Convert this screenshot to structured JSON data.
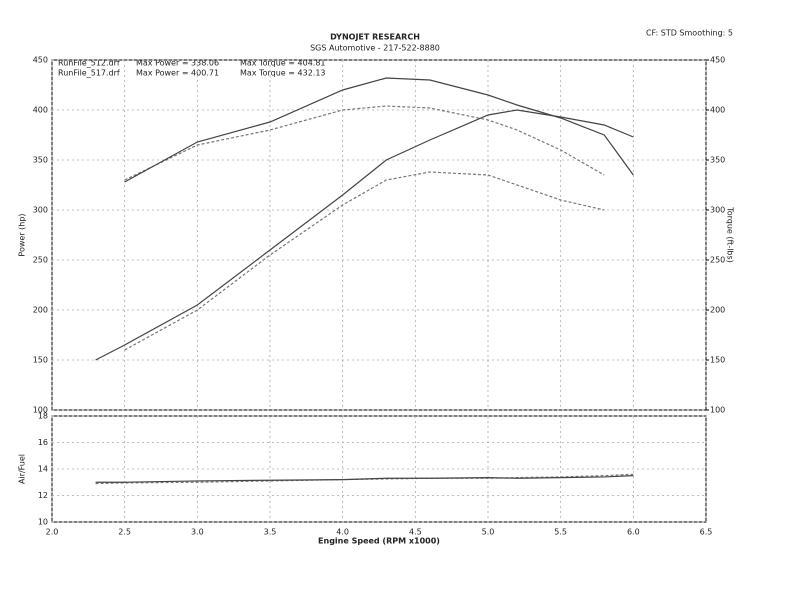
{
  "header": {
    "title": "DYNOJET RESEARCH",
    "subtitle": "SGS Automotive - 217-522-8880",
    "settings": "CF: STD  Smoothing: 5"
  },
  "chart_data": [
    {
      "type": "line",
      "ylabel": "Power (hp)",
      "y2label": "Torque (ft-lbs)",
      "x": [
        2.3,
        2.5,
        3.0,
        3.5,
        4.0,
        4.3,
        4.6,
        5.0,
        5.2,
        5.5,
        5.8,
        6.0
      ],
      "xlim": [
        2,
        6.5
      ],
      "xticks": [
        2,
        2.5,
        3,
        3.5,
        4,
        4.5,
        5,
        5.5,
        6,
        6.5
      ],
      "ylim": [
        100,
        450
      ],
      "yticks": [
        100,
        150,
        200,
        250,
        300,
        350,
        400,
        450
      ],
      "y2lim": [
        100,
        450
      ],
      "y2ticks": [
        100,
        150,
        200,
        250,
        300,
        350,
        400,
        450
      ],
      "grid": true,
      "annotations": [
        "Max Power = 338.06",
        "Max Power = 400.71",
        "Max Torque = 404.81",
        "Max Torque = 432.13"
      ],
      "series": [
        {
          "name": "RunFile_512.drf",
          "color": "#777777",
          "dash": true,
          "values": [
            null,
            160,
            200,
            255,
            305,
            330,
            338,
            335,
            325,
            310,
            300,
            null
          ]
        },
        {
          "name": "RunFile_517.drf",
          "color": "#444444",
          "dash": false,
          "values": [
            150,
            165,
            205,
            260,
            315,
            350,
            370,
            395,
            400,
            393,
            385,
            373
          ]
        },
        {
          "color": "#777777",
          "dash": true,
          "axis": "y2",
          "values": [
            null,
            330,
            365,
            380,
            400,
            404,
            402,
            390,
            380,
            360,
            335,
            null
          ]
        },
        {
          "color": "#444444",
          "dash": false,
          "axis": "y2",
          "values": [
            null,
            328,
            368,
            388,
            420,
            432,
            430,
            415,
            405,
            392,
            375,
            335
          ]
        }
      ]
    },
    {
      "type": "line",
      "ylabel": "Air/Fuel",
      "xlabel": "Engine Speed (RPM x1000)",
      "x": [
        2.3,
        2.5,
        3.0,
        3.5,
        4.0,
        4.3,
        4.6,
        5.0,
        5.2,
        5.5,
        5.8,
        6.0
      ],
      "xlim": [
        2,
        6.5
      ],
      "xticks": [
        {
          "value": 2,
          "label": "2.0"
        },
        {
          "value": 2.5,
          "label": "2.5"
        },
        {
          "value": 3,
          "label": "3.0"
        },
        {
          "value": 3.5,
          "label": "3.5"
        },
        {
          "value": 4,
          "label": "4.0"
        },
        {
          "value": 4.5,
          "label": "4.5"
        },
        {
          "value": 5,
          "label": "5.0"
        },
        {
          "value": 5.5,
          "label": "5.5"
        },
        {
          "value": 6,
          "label": "6.0"
        },
        {
          "value": 6.5,
          "label": "6.5"
        }
      ],
      "ylim": [
        10,
        18
      ],
      "yticks": [
        10,
        12,
        14,
        16,
        18
      ],
      "grid": true,
      "series": [
        {
          "color": "#777777",
          "dash": true,
          "values": [
            12.9,
            12.95,
            13.0,
            13.1,
            13.2,
            13.25,
            13.3,
            13.3,
            13.35,
            13.4,
            13.5,
            13.6
          ]
        },
        {
          "color": "#444444",
          "dash": false,
          "values": [
            13.0,
            13.0,
            13.1,
            13.15,
            13.2,
            13.3,
            13.3,
            13.35,
            13.3,
            13.35,
            13.4,
            13.5
          ]
        }
      ]
    }
  ]
}
